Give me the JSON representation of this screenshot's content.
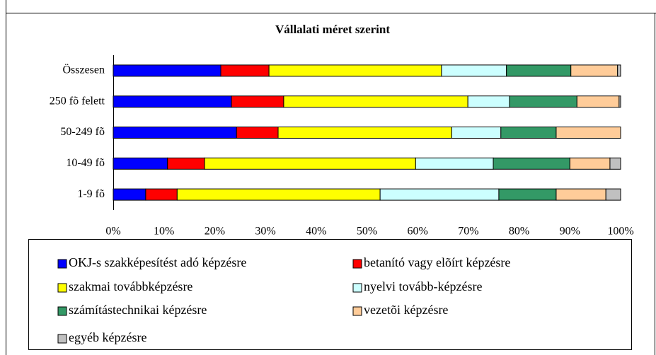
{
  "chart_data": {
    "type": "bar",
    "orientation": "horizontal",
    "stacked": true,
    "title": "Vállalati méret szerint",
    "categories": [
      "Összesen",
      "250 fõ felett",
      "50-249 fõ",
      "10-49 fõ",
      "1-9 fõ"
    ],
    "series": [
      {
        "name": "OKJ-s szakképesítést adó képzésre",
        "color": "#0000ff",
        "values": [
          21.2,
          23.3,
          24.3,
          10.7,
          6.4
        ]
      },
      {
        "name": "betanító vagy elõírt képzésre",
        "color": "#ff0000",
        "values": [
          9.5,
          10.3,
          8.2,
          7.3,
          6.2
        ]
      },
      {
        "name": "szakmai továbbképzésre",
        "color": "#ffff00",
        "values": [
          34.0,
          36.3,
          34.2,
          41.6,
          40.0
        ]
      },
      {
        "name": "nyelvi tovább-képzésre",
        "color": "#ccffff",
        "values": [
          12.8,
          8.2,
          9.7,
          15.3,
          23.4
        ]
      },
      {
        "name": "számítástechnikai képzésre",
        "color": "#339966",
        "values": [
          12.7,
          13.3,
          10.9,
          15.1,
          11.3
        ]
      },
      {
        "name": "vezetõi képzésre",
        "color": "#ffcc99",
        "values": [
          9.2,
          8.3,
          12.7,
          7.9,
          9.8
        ]
      },
      {
        "name": "egyéb képzésre",
        "color": "#c0c0c0",
        "values": [
          0.6,
          0.3,
          0,
          2.1,
          2.9
        ]
      }
    ],
    "xlim": [
      0,
      100
    ],
    "xticks": [
      {
        "value": 0,
        "label": "0%"
      },
      {
        "value": 10,
        "label": "10%"
      },
      {
        "value": 20,
        "label": "20%"
      },
      {
        "value": 30,
        "label": "30%"
      },
      {
        "value": 40,
        "label": "40%"
      },
      {
        "value": 50,
        "label": "50%"
      },
      {
        "value": 60,
        "label": "60%"
      },
      {
        "value": 70,
        "label": "70%"
      },
      {
        "value": 80,
        "label": "80%"
      },
      {
        "value": 90,
        "label": "90%"
      },
      {
        "value": 100,
        "label": "100%"
      }
    ],
    "grid": false,
    "legend": "bottom"
  }
}
